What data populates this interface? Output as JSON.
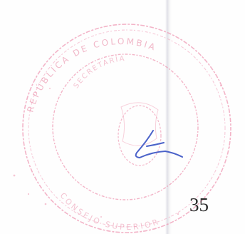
{
  "document": {
    "page_number": "35",
    "stamp": {
      "outer_text_top": "REPÚBLICA DE COLOMBIA",
      "outer_text_bottom": "CONSEJO SUPERIOR",
      "inner_text": "SECRETARÍA",
      "ink_color": "#e98aa6",
      "signature_color": "#4a62c9"
    }
  }
}
